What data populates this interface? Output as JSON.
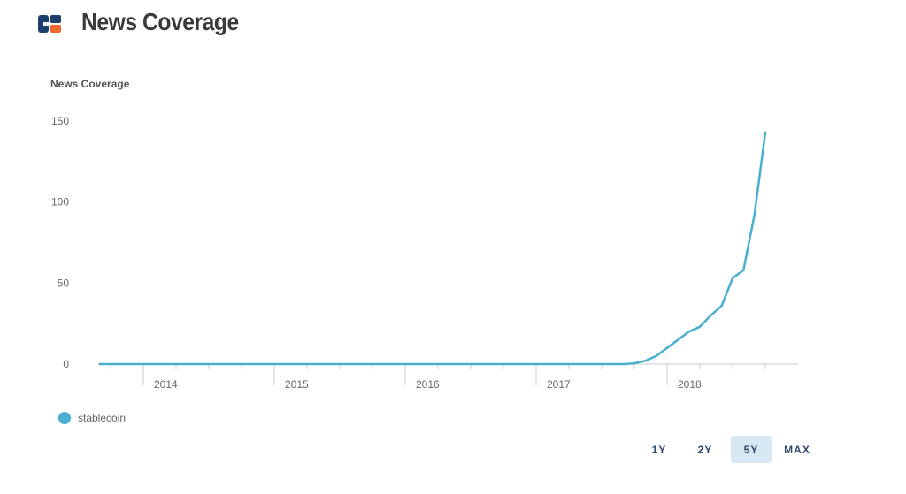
{
  "header": {
    "title": "News Coverage"
  },
  "chart_data": {
    "type": "line",
    "ylabel": "News Coverage",
    "xlabel": "",
    "ylim": [
      0,
      150
    ],
    "yticks": [
      "0",
      "50",
      "100",
      "150"
    ],
    "xticks": [
      "2014",
      "2015",
      "2016",
      "2017",
      "2018"
    ],
    "grid": false,
    "legend_position": "bottom-left",
    "series": [
      {
        "name": "stablecoin",
        "color": "#4aaed1",
        "points": [
          [
            "2013-09",
            0
          ],
          [
            "2014-06",
            0
          ],
          [
            "2015-06",
            0
          ],
          [
            "2016-06",
            0
          ],
          [
            "2017-06",
            0
          ],
          [
            "2017-09",
            0
          ],
          [
            "2017-10",
            0.5
          ],
          [
            "2017-11",
            2
          ],
          [
            "2017-12",
            5
          ],
          [
            "2018-01",
            10
          ],
          [
            "2018-02",
            15
          ],
          [
            "2018-03",
            20
          ],
          [
            "2018-04",
            23
          ],
          [
            "2018-05",
            30
          ],
          [
            "2018-06",
            36
          ],
          [
            "2018-07",
            53
          ],
          [
            "2018-08",
            58
          ],
          [
            "2018-09",
            92
          ],
          [
            "2018-10",
            143
          ]
        ]
      }
    ]
  },
  "range_selector": {
    "options": [
      "1Y",
      "2Y",
      "5Y",
      "MAX"
    ],
    "selected": "5Y"
  }
}
